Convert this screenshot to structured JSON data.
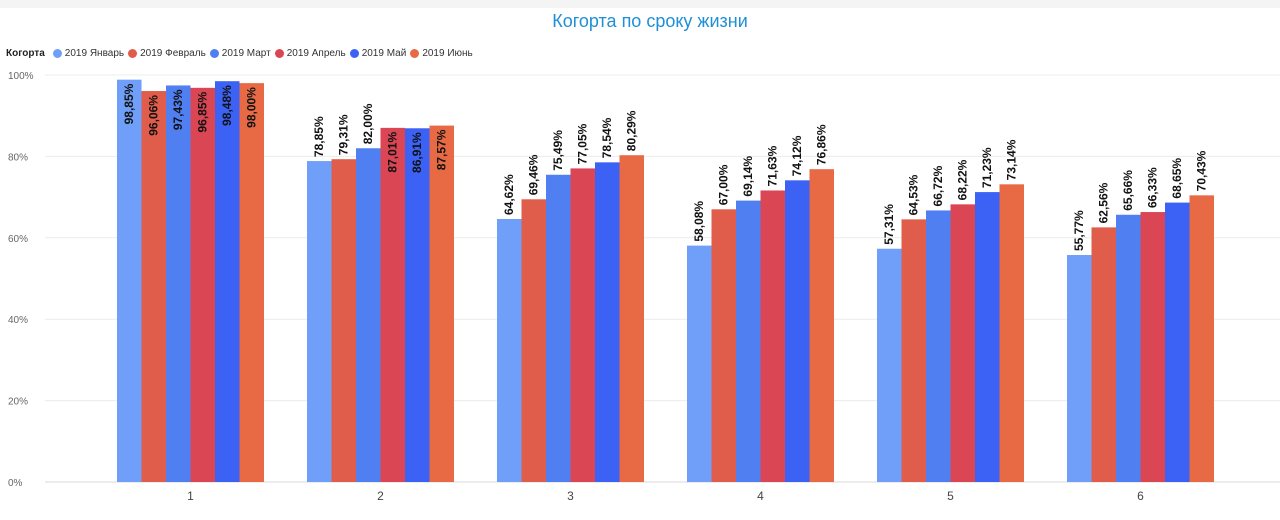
{
  "chart_data": {
    "type": "bar",
    "title": "Когорта по сроку жизни",
    "legend_title": "Когорта",
    "legend_position": "top-left",
    "grid": true,
    "ylim": [
      0,
      100
    ],
    "yticks": [
      "0%",
      "20%",
      "40%",
      "60%",
      "80%",
      "100%"
    ],
    "categories": [
      "1",
      "2",
      "3",
      "4",
      "5",
      "6"
    ],
    "series": [
      {
        "name": "2019 Январь",
        "color": "#6f9ff8",
        "values": [
          98.85,
          78.85,
          64.62,
          58.08,
          57.31,
          55.77
        ],
        "labels": [
          "98,85%",
          "78,85%",
          "64,62%",
          "58,08%",
          "57,31%",
          "55,77%"
        ]
      },
      {
        "name": "2019 Февраль",
        "color": "#e05c4b",
        "values": [
          96.06,
          79.31,
          69.46,
          67.0,
          64.53,
          62.56
        ],
        "labels": [
          "96,06%",
          "79,31%",
          "69,46%",
          "67,00%",
          "64,53%",
          "62,56%"
        ]
      },
      {
        "name": "2019 Март",
        "color": "#4f7ff0",
        "values": [
          97.43,
          82.0,
          75.49,
          69.14,
          66.72,
          65.66
        ],
        "labels": [
          "97,43%",
          "82,00%",
          "75,49%",
          "69,14%",
          "66,72%",
          "65,66%"
        ]
      },
      {
        "name": "2019 Апрель",
        "color": "#db4655",
        "values": [
          96.85,
          87.01,
          77.05,
          71.63,
          68.22,
          66.33
        ],
        "labels": [
          "96,85%",
          "87,01%",
          "77,05%",
          "71,63%",
          "68,22%",
          "66,33%"
        ]
      },
      {
        "name": "2019 Май",
        "color": "#3c62f5",
        "values": [
          98.48,
          86.91,
          78.54,
          74.12,
          71.23,
          68.65
        ],
        "labels": [
          "98,48%",
          "86,91%",
          "78,54%",
          "74,12%",
          "71,23%",
          "68,65%"
        ]
      },
      {
        "name": "2019 Июнь",
        "color": "#e86a45",
        "values": [
          98.0,
          87.57,
          80.29,
          76.86,
          73.14,
          70.43
        ],
        "labels": [
          "98,00%",
          "87,57%",
          "80,29%",
          "76,86%",
          "73,14%",
          "70,43%"
        ]
      }
    ]
  }
}
